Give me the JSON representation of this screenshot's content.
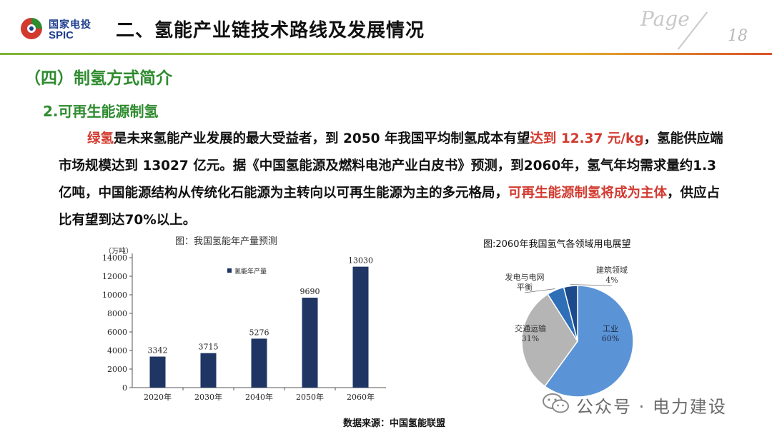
{
  "header": {
    "logo_cn": "国家电投",
    "logo_en": "SPIC",
    "title": "二、氢能产业链技术路线及发展情况",
    "page_word": "Page",
    "page_number": "18",
    "accent_colors": [
      "#7fb238",
      "#e2a82b",
      "#d8512b"
    ]
  },
  "section": {
    "title": "（四）制氢方式简介",
    "subtitle": "2.可再生能源制氢"
  },
  "paragraph": {
    "p1_red": "绿氢",
    "p2": "是未来氢能产业发展的最大受益者，到 2050 年我国平均制氢成本有望",
    "p3_red": "达到 12.37 元/kg",
    "p4": "，氢能供应端市场规模达到 13027 亿元。据《中国氢能源及燃料电池产业白皮书》预测，到2060年，氢气年均需求量约1.3亿吨，中国能源结构从传统化石能源为主转向以可再生能源为主的多元格局，",
    "p5_red": "可再生能源制氢将成为主体",
    "p6": "，供应占比有望到达70%以上。"
  },
  "chart_data": [
    {
      "type": "bar",
      "title": "图：我国氢能年产量预测",
      "ylabel": "（万吨）",
      "categories": [
        "2020年",
        "2030年",
        "2040年",
        "2050年",
        "2060年"
      ],
      "series": [
        {
          "name": "氢能年产量",
          "values": [
            3342,
            3715,
            5276,
            9690,
            13030
          ]
        }
      ],
      "data_labels": [
        "3342",
        "3715",
        "5276",
        "9690",
        "13030"
      ],
      "yticks": [
        "0",
        "2000",
        "4000",
        "6000",
        "8000",
        "10000",
        "12000",
        "14000"
      ],
      "ylim": [
        0,
        14000
      ],
      "legend": "top-left",
      "grid": false,
      "bar_color": "#1f3564"
    },
    {
      "type": "pie",
      "title": "图:2060年我国氢气各领域用电展望",
      "slices": [
        {
          "label_line1": "工业",
          "label_line2": "60%",
          "value": 60,
          "color": "#5b94d6"
        },
        {
          "label_line1": "交通运输",
          "label_line2": "31%",
          "value": 31,
          "color": "#b5b5b5"
        },
        {
          "label_line1": "发电与电网",
          "label_line2": "平衡",
          "value": 5,
          "color": "#2f6fb8"
        },
        {
          "label_line1": "建筑领域",
          "label_line2": "4%",
          "value": 4,
          "color": "#1d4a8a"
        }
      ]
    }
  ],
  "source": "数据来源：中国氢能联盟",
  "watermark": {
    "icon": "wechat-icon",
    "text": "公众号 · 电力建设"
  }
}
